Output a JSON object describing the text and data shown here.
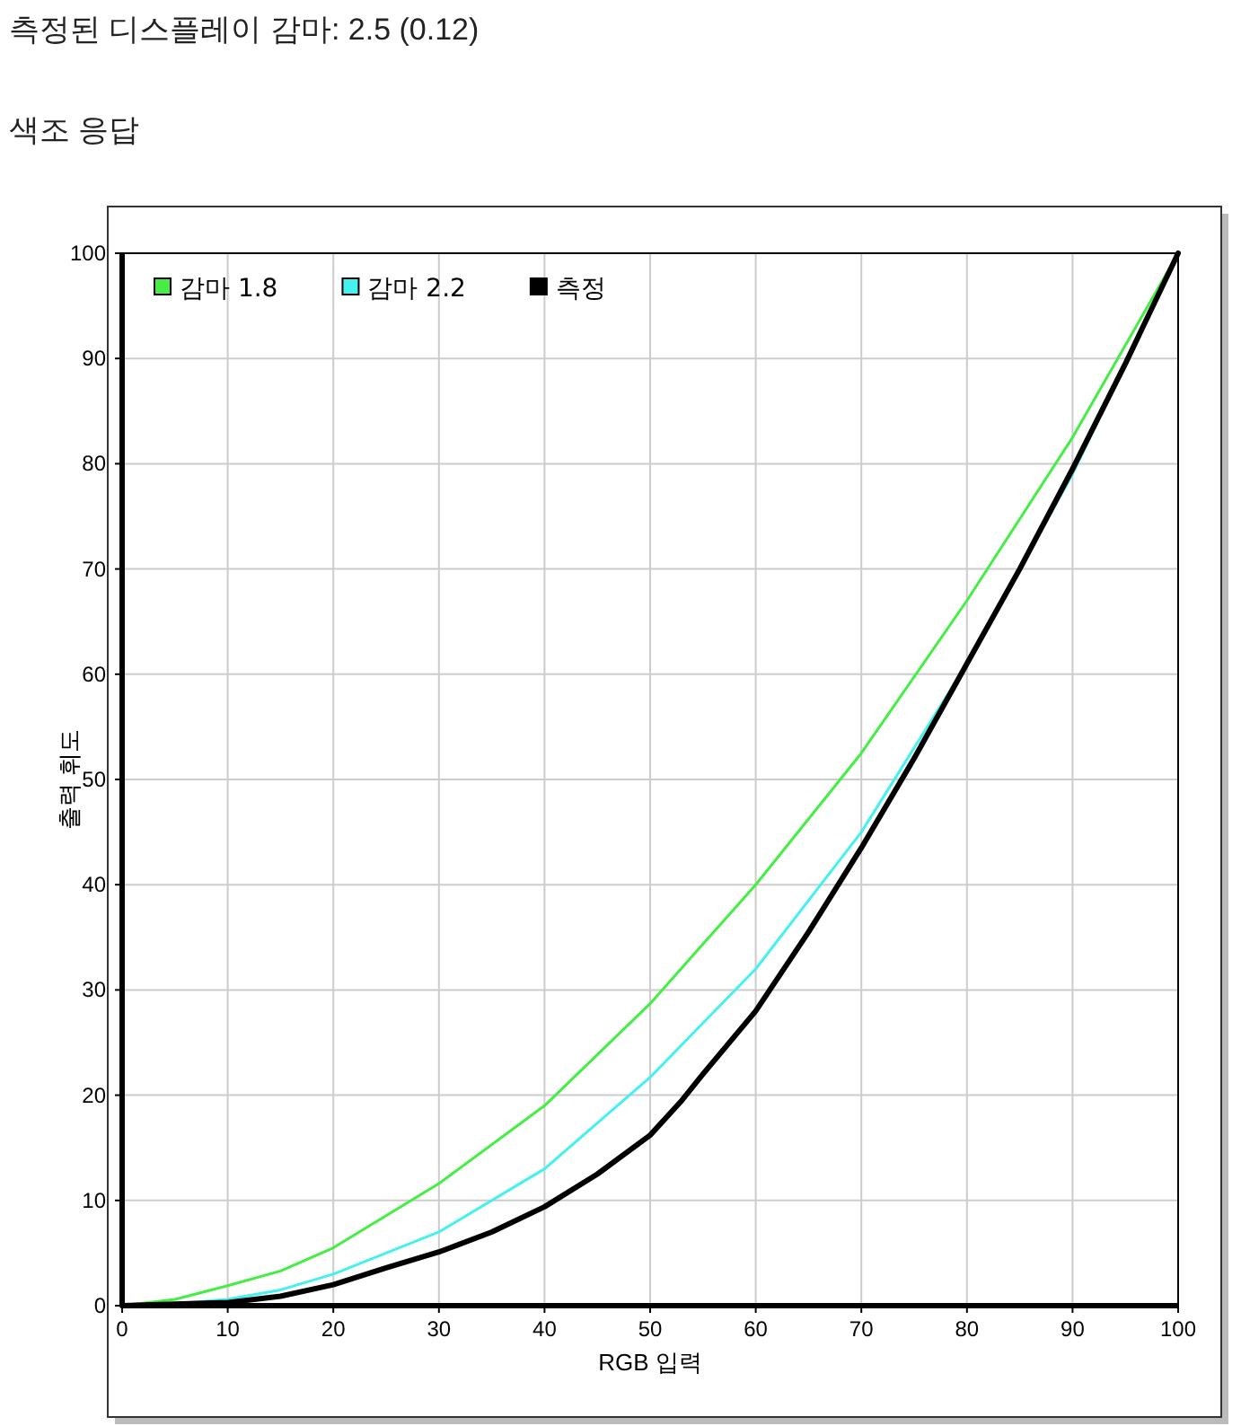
{
  "chart_data": {
    "type": "line",
    "title": "측정된 디스플레이 감마: 2.5 (0.12)",
    "subtitle": "색조 응답",
    "xlabel": "RGB 입력",
    "ylabel": "출력 휘도",
    "xlim": [
      0,
      100
    ],
    "ylim": [
      0,
      100
    ],
    "xticks": [
      0,
      10,
      20,
      30,
      40,
      50,
      60,
      70,
      80,
      90,
      100
    ],
    "yticks": [
      0,
      10,
      20,
      30,
      40,
      50,
      60,
      70,
      80,
      90,
      100
    ],
    "grid": true,
    "legend": "top left",
    "series": [
      {
        "name": "감마 1.8",
        "color": "#44ee44",
        "x": [
          0,
          5,
          10,
          15,
          20,
          30,
          40,
          50,
          60,
          70,
          80,
          90,
          100
        ],
        "values": [
          0,
          0.6,
          1.9,
          3.3,
          5.5,
          11.6,
          19,
          28.7,
          40,
          52.5,
          67,
          82.5,
          100
        ]
      },
      {
        "name": "감마 2.2",
        "color": "#44f0f0",
        "x": [
          0,
          5,
          10,
          15,
          20,
          30,
          40,
          50,
          60,
          70,
          80,
          90,
          100
        ],
        "values": [
          0,
          0.2,
          0.6,
          1.5,
          3,
          7,
          13,
          21.7,
          32,
          45,
          61,
          79,
          100
        ]
      },
      {
        "name": "측정",
        "color": "#000000",
        "x": [
          0,
          10,
          15,
          20,
          25,
          30,
          35,
          40,
          45,
          50,
          53,
          55,
          60,
          65,
          70,
          75,
          80,
          85,
          90,
          95,
          100
        ],
        "values": [
          0,
          0.3,
          0.9,
          2,
          3.6,
          5.1,
          7,
          9.4,
          12.5,
          16.2,
          19.5,
          22,
          28,
          35.5,
          43.5,
          52,
          61,
          70,
          79.5,
          89.5,
          100
        ]
      }
    ]
  }
}
